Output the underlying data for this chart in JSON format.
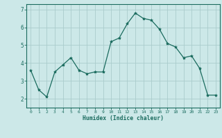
{
  "x": [
    0,
    1,
    2,
    3,
    4,
    5,
    6,
    7,
    8,
    9,
    10,
    11,
    12,
    13,
    14,
    15,
    16,
    17,
    18,
    19,
    20,
    21,
    22,
    23
  ],
  "y": [
    3.6,
    2.5,
    2.1,
    3.5,
    3.9,
    4.3,
    3.6,
    3.4,
    3.5,
    3.5,
    5.2,
    5.4,
    6.2,
    6.8,
    6.5,
    6.4,
    5.9,
    5.1,
    4.9,
    4.3,
    4.4,
    3.7,
    2.2,
    2.2
  ],
  "xlabel": "Humidex (Indice chaleur)",
  "ylim": [
    1.5,
    7.3
  ],
  "xlim": [
    -0.5,
    23.5
  ],
  "yticks": [
    2,
    3,
    4,
    5,
    6,
    7
  ],
  "xticks": [
    0,
    1,
    2,
    3,
    4,
    5,
    6,
    7,
    8,
    9,
    10,
    11,
    12,
    13,
    14,
    15,
    16,
    17,
    18,
    19,
    20,
    21,
    22,
    23
  ],
  "line_color": "#1a6b5e",
  "marker_color": "#1a6b5e",
  "bg_color": "#cce8e8",
  "grid_color": "#aacccc",
  "axis_color": "#1a6b5e",
  "tick_label_color": "#1a6b5e",
  "xlabel_color": "#1a6b5e"
}
